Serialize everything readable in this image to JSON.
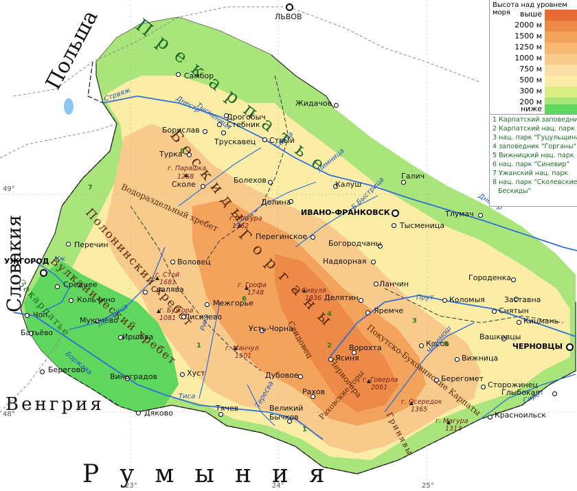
{
  "legend": {
    "title": "Высота над уровнем моря",
    "levels": [
      {
        "label": "выше 2000 м",
        "text": "выше",
        "color": "#e86a34"
      },
      {
        "label": "2000 м",
        "text": "2000 м",
        "color": "#ee8a48"
      },
      {
        "label": "1500 м",
        "text": "1500 м",
        "color": "#f3a35c"
      },
      {
        "label": "1250 м",
        "text": "1250 м",
        "color": "#f6b872"
      },
      {
        "label": "1000 м",
        "text": "1000 м",
        "color": "#f8cb8c"
      },
      {
        "label": "750 м",
        "text": "750 м",
        "color": "#fadca5"
      },
      {
        "label": "500 м",
        "text": "500 м",
        "color": "#fbeda6"
      },
      {
        "label": "300 м",
        "text": "300 м",
        "color": "#d9ef86"
      },
      {
        "label": "200 м",
        "text": "200 м",
        "color": "#a9e57a"
      },
      {
        "label": "ниже",
        "text": "ниже",
        "color": "#5fd65e"
      }
    ]
  },
  "parks": [
    "1 Карпатский заповедник",
    "2 Карпатский нац. парк",
    "3 нац. парк \"Гуцульщина\"",
    "4 заповедник \"Горганы\"",
    "5 Вижницкий нац. парк",
    "6 нац. парк \"Синевир\"",
    "7 Ужанский нац. парк",
    "8 нац. парк \"Сколевские",
    "Бескиды\""
  ],
  "countries": {
    "poland": "Польша",
    "slovakia": "Словакия",
    "hungary": "Венгрия",
    "romania": "Румыния"
  },
  "regions": {
    "precarpathia": "Прекарпатье",
    "beskids": "Бескиды",
    "vodorazdel": "Водораздельный хребет",
    "poloninsky": "Полонинский хребет",
    "vulkanichesky": "Вулканический хребет",
    "zakarpatie": "Закарпатье",
    "gorgany": "Горганы",
    "svidovets": "Свидовец",
    "chernogora": "Черногора",
    "pokutsko": "Покутско-Буковинские Карпаты",
    "rakhovskie": "Раховские горы",
    "grinyavy": "Гринявы"
  },
  "cities": {
    "lvov": "ЛЬВОВ",
    "sambor": "Самбор",
    "drogobych": "Дрогобыч",
    "stebnik": "Стебник",
    "boryslav": "Борислав",
    "truskavets": "Трускавец",
    "stryi": "Стрый",
    "zhidachov": "Жидачов",
    "turka": "Турка",
    "skole": "Сколе",
    "bolekhov": "Болехов",
    "kalush": "Калуш",
    "galich": "Галич",
    "dolina": "Долина",
    "ivano_frankovsk": "ИВАНО-ФРАНКОВСК",
    "tysmenitsa": "Тысменица",
    "tlumach": "Тлумач",
    "pereginskoe": "Перегинское",
    "bogorodchany": "Богородчаны",
    "perechin": "Перечин",
    "uzhgorod": "УЖГОРОД",
    "volovets": "Воловец",
    "nadvornaya": "Надворная",
    "lanchin": "Ланчин",
    "gorodenka": "Городенка",
    "srednee": "Среднее",
    "svalyava": "Свалява",
    "delyatin": "Делятин",
    "kolomyya": "Коломыя",
    "zastavna": "Заставна",
    "kolchino": "Кольчино",
    "mezhgorie": "Межгорье",
    "yaremche": "Яремче",
    "sniatyn": "Снятын",
    "kitsman": "Кицмань",
    "chop": "Чоп",
    "mukachevo": "Мукачево",
    "lisichevo": "Лисичево",
    "ust_chorna": "Усть-Чорна",
    "batyevo": "Батьёво",
    "irshava": "Иршава",
    "kosov": "Косов",
    "vashkovtsy": "Вашковцы",
    "chernovtsy": "ЧЕРНОВЦЫ",
    "vorokhta": "Ворохта",
    "vizhnitsa": "Вижница",
    "yasinya": "Ясиня",
    "beregovo": "Берегово",
    "khust": "Хуст",
    "dubovoe": "Дубовое",
    "beregomet": "Берегомет",
    "storozhinets": "Сторожинец",
    "vinogradov": "Виноградов",
    "rakhov": "Рахов",
    "glyboka": "Глыбокая",
    "tyachev": "Тячев",
    "velikiy_bychkov": "Великий Бычков",
    "dyakovo": "Дяково",
    "krasnoilsk": "Красноильск"
  },
  "peaks": {
    "parashka": "г. Парашка",
    "parashka_h": "1268",
    "magura": "г. Магура",
    "magura_h": "1362",
    "stoy": "г. Стой",
    "stoy_h": "1681",
    "grofa": "г. Грофа",
    "grofa_h": "1748",
    "sivulya": "г. Сивуля",
    "sivulya_h": "1836",
    "buzhora": "г. Бужора",
    "buzhora_h": "1081",
    "mantsul": "г. Манчул",
    "mantsul_h": "1501",
    "goverla": "г. Говерла",
    "goverla_h": "2061",
    "oseredok": "г. Осередок",
    "oseredok_h": "1365",
    "magura2": "г. Магура",
    "magura2_h": "1313"
  },
  "rivers": {
    "stryazh": "Стрвяж",
    "dnestr1": "Днестр",
    "dnestr2": "Днестр",
    "tismenitsa": "Тысменица",
    "svicha": "Свича",
    "limnitsa": "Лимница",
    "uzh": "Уж",
    "latoritsa": "Латорица",
    "borzhava": "Боржава",
    "rika": "Рика",
    "teresva": "Тересва",
    "tisa": "Тиса",
    "prut": "Прут",
    "cheremosh": "Черемош",
    "siret": "Сирет",
    "b_bystritsa": "Б.Быстрица"
  },
  "grid": {
    "lat49": "49°",
    "lat48": "48°",
    "lon23": "23°",
    "lon24": "24°",
    "lon25": "25°"
  }
}
